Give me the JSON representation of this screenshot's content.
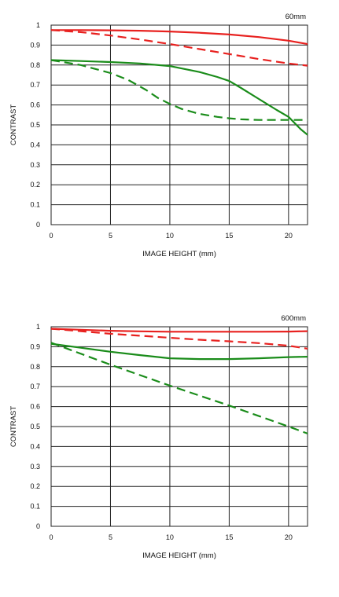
{
  "chart_data": [
    {
      "type": "line",
      "title": "60mm",
      "xlabel": "IMAGE HEIGHT (mm)",
      "ylabel": "CONTRAST",
      "xlim": [
        0,
        21.6
      ],
      "ylim": [
        0,
        1
      ],
      "xticks": [
        0,
        5,
        10,
        15,
        20
      ],
      "xtick_labels": [
        "0",
        "5",
        "10",
        "15",
        "20"
      ],
      "yticks": [
        0,
        0.1,
        0.2,
        0.3,
        0.4,
        0.5,
        0.6,
        0.7,
        0.8,
        0.9,
        1
      ],
      "ytick_labels": [
        "0",
        "0.1",
        "0.2",
        "0.3",
        "0.4",
        "0.5",
        "0.6",
        "0.7",
        "0.8",
        "0.9",
        "1"
      ],
      "grid": true,
      "series": [
        {
          "color": "#e8211f",
          "dash": "solid",
          "x": [
            0,
            2.5,
            5,
            7.5,
            10,
            12.5,
            15,
            17.5,
            20,
            21.6
          ],
          "y": [
            0.975,
            0.975,
            0.974,
            0.972,
            0.968,
            0.962,
            0.953,
            0.94,
            0.922,
            0.905
          ]
        },
        {
          "color": "#e8211f",
          "dash": "dashed",
          "x": [
            0,
            2.5,
            5,
            7.5,
            10,
            12.5,
            15,
            17.5,
            20,
            21.6
          ],
          "y": [
            0.975,
            0.965,
            0.948,
            0.928,
            0.905,
            0.88,
            0.855,
            0.83,
            0.808,
            0.797
          ]
        },
        {
          "color": "#1a8c1a",
          "dash": "solid",
          "x": [
            0,
            2.5,
            5,
            7.5,
            10,
            12.5,
            14,
            15,
            16,
            17.5,
            19,
            20,
            21,
            21.6
          ],
          "y": [
            0.825,
            0.82,
            0.815,
            0.808,
            0.795,
            0.765,
            0.74,
            0.72,
            0.685,
            0.63,
            0.575,
            0.54,
            0.48,
            0.45
          ]
        },
        {
          "color": "#1a8c1a",
          "dash": "dashed",
          "x": [
            0,
            2.5,
            5,
            6.5,
            8,
            9,
            10,
            11,
            12.5,
            14,
            15,
            16,
            17.5,
            20,
            21.6
          ],
          "y": [
            0.825,
            0.8,
            0.76,
            0.725,
            0.675,
            0.635,
            0.605,
            0.58,
            0.555,
            0.54,
            0.533,
            0.528,
            0.525,
            0.525,
            0.525
          ]
        }
      ]
    },
    {
      "type": "line",
      "title": "600mm",
      "xlabel": "IMAGE HEIGHT (mm)",
      "ylabel": "CONTRAST",
      "xlim": [
        0,
        21.6
      ],
      "ylim": [
        0,
        1
      ],
      "xticks": [
        0,
        5,
        10,
        15,
        20
      ],
      "xtick_labels": [
        "0",
        "5",
        "10",
        "15",
        "20"
      ],
      "yticks": [
        0,
        0.1,
        0.2,
        0.3,
        0.4,
        0.5,
        0.6,
        0.7,
        0.8,
        0.9,
        1
      ],
      "ytick_labels": [
        "0",
        "0.1",
        "0.2",
        "0.3",
        "0.4",
        "0.5",
        "0.6",
        "0.7",
        "0.8",
        "0.9",
        "1"
      ],
      "grid": true,
      "series": [
        {
          "color": "#e8211f",
          "dash": "solid",
          "x": [
            0,
            2.5,
            5,
            7.5,
            10,
            12.5,
            15,
            17.5,
            20,
            21.6
          ],
          "y": [
            0.99,
            0.985,
            0.98,
            0.977,
            0.975,
            0.975,
            0.975,
            0.975,
            0.976,
            0.978
          ]
        },
        {
          "color": "#e8211f",
          "dash": "dashed",
          "x": [
            0,
            2.5,
            5,
            7.5,
            10,
            12.5,
            15,
            17.5,
            20,
            21.6
          ],
          "y": [
            0.99,
            0.978,
            0.965,
            0.955,
            0.945,
            0.935,
            0.927,
            0.918,
            0.905,
            0.89
          ]
        },
        {
          "color": "#1a8c1a",
          "dash": "solid",
          "x": [
            0,
            2.5,
            5,
            7.5,
            10,
            12.5,
            15,
            17.5,
            20,
            21.6
          ],
          "y": [
            0.915,
            0.895,
            0.875,
            0.858,
            0.842,
            0.838,
            0.838,
            0.842,
            0.848,
            0.85
          ]
        },
        {
          "color": "#1a8c1a",
          "dash": "dashed",
          "x": [
            0,
            5,
            10,
            15,
            20,
            21.6
          ],
          "y": [
            0.92,
            0.81,
            0.705,
            0.605,
            0.5,
            0.465
          ]
        }
      ]
    }
  ]
}
